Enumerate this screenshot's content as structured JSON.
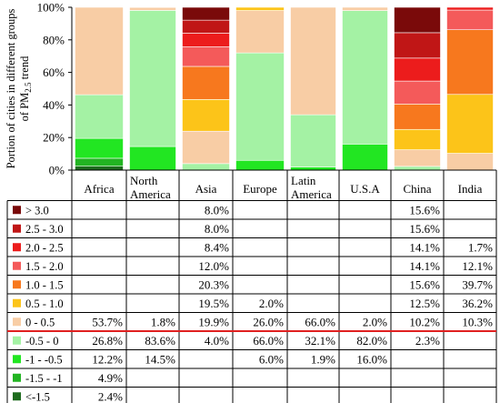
{
  "chart_data": {
    "type": "bar",
    "stacked": true,
    "ylabel_line1": "Portion of cities in different groups",
    "ylabel_line2": "of PM",
    "ylabel_sub": "2.5",
    "ylabel_tail": " trend",
    "ylim": [
      0,
      100
    ],
    "yticks": [
      "0%",
      "20%",
      "40%",
      "60%",
      "80%",
      "100%"
    ],
    "grid": false,
    "categories": [
      "Africa",
      "North America",
      "Asia",
      "Europe",
      "Latin America",
      "U.S.A",
      "China",
      "India"
    ],
    "category_lines": [
      [
        "Africa"
      ],
      [
        "North",
        "America"
      ],
      [
        "Asia"
      ],
      [
        "Europe"
      ],
      [
        "Latin",
        "America"
      ],
      [
        "U.S.A"
      ],
      [
        "China"
      ],
      [
        "India"
      ]
    ],
    "series": [
      {
        "name": "<-1.5",
        "color": "#1e6b1e",
        "values": [
          2.4,
          null,
          null,
          null,
          null,
          null,
          null,
          null
        ],
        "labels": [
          "2.4%",
          "",
          "",
          "",
          "",
          "",
          "",
          ""
        ]
      },
      {
        "name": "-1.5 - -1",
        "color": "#22b422",
        "values": [
          4.9,
          null,
          null,
          null,
          null,
          null,
          null,
          null
        ],
        "labels": [
          "4.9%",
          "",
          "",
          "",
          "",
          "",
          "",
          ""
        ]
      },
      {
        "name": "-1 - -0.5",
        "color": "#22e622",
        "values": [
          12.2,
          14.5,
          null,
          6.0,
          1.9,
          16.0,
          null,
          null
        ],
        "labels": [
          "12.2%",
          "14.5%",
          "",
          "6.0%",
          "1.9%",
          "16.0%",
          "",
          ""
        ]
      },
      {
        "name": "-0.5 - 0",
        "color": "#a4f2a4",
        "values": [
          26.8,
          83.6,
          4.0,
          66.0,
          32.1,
          82.0,
          2.3,
          null
        ],
        "labels": [
          "26.8%",
          "83.6%",
          "4.0%",
          "66.0%",
          "32.1%",
          "82.0%",
          "2.3%",
          ""
        ]
      },
      {
        "name": "0 - 0.5",
        "color": "#f8cda5",
        "values": [
          53.7,
          1.8,
          19.9,
          26.0,
          66.0,
          2.0,
          10.2,
          10.3
        ],
        "labels": [
          "53.7%",
          "1.8%",
          "19.9%",
          "26.0%",
          "66.0%",
          "2.0%",
          "10.2%",
          "10.3%"
        ]
      },
      {
        "name": "0.5 - 1.0",
        "color": "#fcc419",
        "values": [
          null,
          null,
          19.5,
          2.0,
          null,
          null,
          12.5,
          36.2
        ],
        "labels": [
          "",
          "",
          "19.5%",
          "2.0%",
          "",
          "",
          "12.5%",
          "36.2%"
        ]
      },
      {
        "name": "1.0 - 1.5",
        "color": "#f7781e",
        "values": [
          null,
          null,
          20.3,
          null,
          null,
          null,
          15.6,
          39.7
        ],
        "labels": [
          "",
          "",
          "20.3%",
          "",
          "",
          "",
          "15.6%",
          "39.7%"
        ]
      },
      {
        "name": "1.5 - 2.0",
        "color": "#f45a5a",
        "values": [
          null,
          null,
          12.0,
          null,
          null,
          null,
          14.1,
          12.1
        ],
        "labels": [
          "",
          "",
          "12.0%",
          "",
          "",
          "",
          "14.1%",
          "12.1%"
        ]
      },
      {
        "name": "2.0 - 2.5",
        "color": "#ec1c1c",
        "values": [
          null,
          null,
          8.4,
          null,
          null,
          null,
          14.1,
          1.7
        ],
        "labels": [
          "",
          "",
          "8.4%",
          "",
          "",
          "",
          "14.1%",
          "1.7%"
        ]
      },
      {
        "name": "2.5 - 3.0",
        "color": "#c01616",
        "values": [
          null,
          null,
          8.0,
          null,
          null,
          null,
          15.6,
          null
        ],
        "labels": [
          "",
          "",
          "8.0%",
          "",
          "",
          "",
          "15.6%",
          ""
        ]
      },
      {
        "name": "> 3.0",
        "color": "#7a0a0a",
        "values": [
          null,
          null,
          8.0,
          null,
          null,
          null,
          15.6,
          null
        ],
        "labels": [
          "",
          "",
          "8.0%",
          "",
          "",
          "",
          "15.6%",
          ""
        ]
      }
    ],
    "table_row_order": [
      "> 3.0",
      "2.5 - 3.0",
      "2.0 - 2.5",
      "1.5 - 2.0",
      "1.0 - 1.5",
      "0.5 - 1.0",
      "0 - 0.5",
      "-0.5 - 0",
      "-1 - -0.5",
      "-1.5 - -1",
      "<-1.5"
    ],
    "separator_color": "#e02020"
  }
}
